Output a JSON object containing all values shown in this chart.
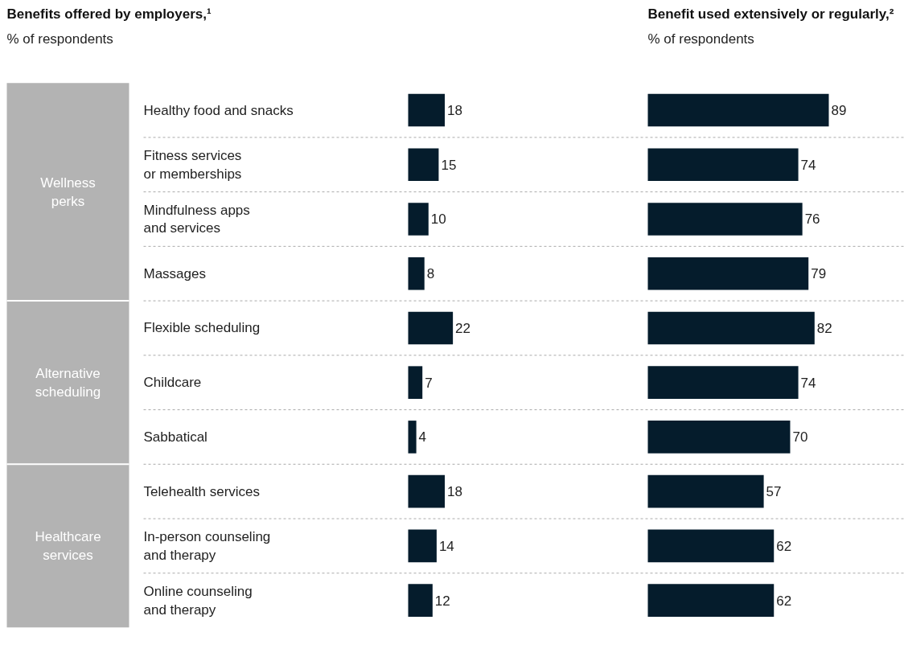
{
  "chart_data": [
    {
      "type": "bar",
      "orientation": "horizontal",
      "title": "Benefits offered by employers,¹",
      "subtitle": "% of respondents",
      "categories": [
        "Healthy food and snacks",
        "Fitness services\nor memberships",
        "Mindfulness apps\nand services",
        "Massages",
        "Flexible scheduling",
        "Childcare",
        "Sabbatical",
        "Telehealth services",
        "In-person counseling\nand therapy",
        "Online counseling\nand therapy"
      ],
      "values": [
        18,
        15,
        10,
        8,
        22,
        7,
        4,
        18,
        14,
        12
      ],
      "color": "#051c2c",
      "data_labels": true,
      "grid": "y",
      "tick_labels": "y",
      "annotations": [
        "Wellness\nperks",
        "Alternative\nscheduling",
        "Healthcare\nservices"
      ]
    },
    {
      "type": "bar",
      "orientation": "horizontal",
      "title": "Benefit used extensively or regularly,²",
      "subtitle": "% of respondents",
      "values": [
        89,
        74,
        76,
        79,
        82,
        74,
        70,
        57,
        62,
        62
      ],
      "color": "#051c2c",
      "data_labels": true,
      "grid": "y",
      "tick_labels": false
    }
  ]
}
